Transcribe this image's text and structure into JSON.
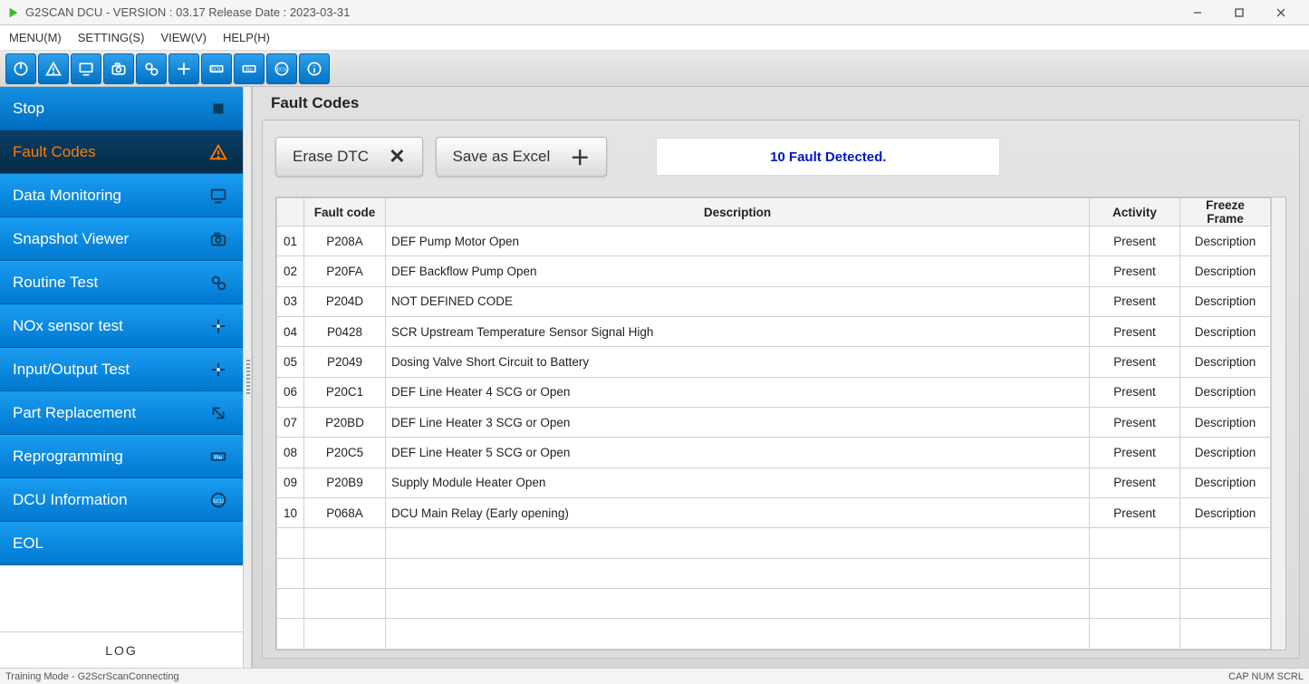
{
  "window": {
    "title": "G2SCAN DCU - VERSION : 03.17 Release Date : 2023-03-31"
  },
  "menubar": {
    "items": [
      "MENU(M)",
      "SETTING(S)",
      "VIEW(V)",
      "HELP(H)"
    ]
  },
  "toolbar_icons": [
    "power",
    "warning",
    "monitor",
    "camera",
    "gears",
    "arrows",
    "eol",
    "re",
    "ecu",
    "info"
  ],
  "sidebar": {
    "items": [
      {
        "label": "Stop",
        "icon": "square"
      },
      {
        "label": "Fault Codes",
        "icon": "warning",
        "active": true
      },
      {
        "label": "Data Monitoring",
        "icon": "monitor"
      },
      {
        "label": "Snapshot Viewer",
        "icon": "camera"
      },
      {
        "label": "Routine Test",
        "icon": "gears"
      },
      {
        "label": "NOx sensor test",
        "icon": "arrows"
      },
      {
        "label": "Input/Output Test",
        "icon": "arrows"
      },
      {
        "label": "Part Replacement",
        "icon": "swap"
      },
      {
        "label": "Reprogramming",
        "icon": "re"
      },
      {
        "label": "DCU Information",
        "icon": "ecu"
      },
      {
        "label": "EOL",
        "icon": ""
      }
    ],
    "log_label": "LOG"
  },
  "main": {
    "title": "Fault Codes",
    "buttons": {
      "erase_label": "Erase DTC",
      "excel_label": "Save as Excel"
    },
    "status_text": "10 Fault Detected.",
    "grid": {
      "columns": [
        "",
        "Fault code",
        "Description",
        "Activity",
        "Freeze Frame"
      ],
      "rows": [
        {
          "idx": "01",
          "code": "P208A",
          "desc": "DEF Pump Motor Open",
          "act": "Present",
          "ff": "Description"
        },
        {
          "idx": "02",
          "code": "P20FA",
          "desc": "DEF Backflow Pump Open",
          "act": "Present",
          "ff": "Description"
        },
        {
          "idx": "03",
          "code": "P204D",
          "desc": "NOT DEFINED CODE",
          "act": "Present",
          "ff": "Description"
        },
        {
          "idx": "04",
          "code": "P0428",
          "desc": "SCR Upstream Temperature Sensor Signal High",
          "act": "Present",
          "ff": "Description"
        },
        {
          "idx": "05",
          "code": "P2049",
          "desc": "Dosing Valve Short Circuit to Battery",
          "act": "Present",
          "ff": "Description"
        },
        {
          "idx": "06",
          "code": "P20C1",
          "desc": "DEF Line Heater 4 SCG or Open",
          "act": "Present",
          "ff": "Description"
        },
        {
          "idx": "07",
          "code": "P20BD",
          "desc": "DEF Line Heater 3 SCG or Open",
          "act": "Present",
          "ff": "Description"
        },
        {
          "idx": "08",
          "code": "P20C5",
          "desc": "DEF Line Heater 5 SCG or Open",
          "act": "Present",
          "ff": "Description"
        },
        {
          "idx": "09",
          "code": "P20B9",
          "desc": "Supply Module Heater Open",
          "act": "Present",
          "ff": "Description"
        },
        {
          "idx": "10",
          "code": "P068A",
          "desc": "DCU Main Relay (Early opening)",
          "act": "Present",
          "ff": "Description"
        }
      ],
      "empty_rows": 4
    }
  },
  "statusbar": {
    "left": "Training Mode - G2ScrScanConnecting",
    "right": "CAP  NUM  SCRL"
  },
  "colors": {
    "sidebar_gradient_top": "#1a9df0",
    "sidebar_gradient_bottom": "#0078d0",
    "sidebar_active_top": "#0a3f66",
    "sidebar_active_bottom": "#052a46",
    "sidebar_active_text": "#ff7b00",
    "status_text": "#0016c4",
    "app_accent": "#35c11a"
  }
}
